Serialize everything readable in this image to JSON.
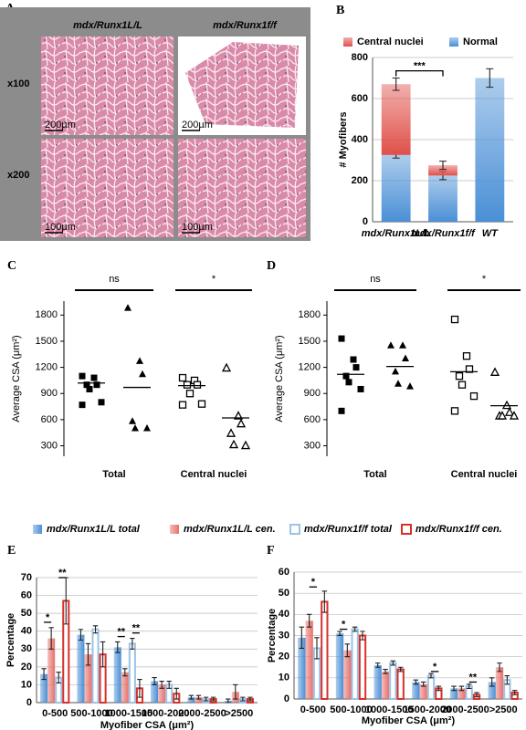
{
  "chart_data": [
    {
      "type": "image",
      "label": "A",
      "columns": [
        "mdx/Runx1L/L",
        "mdx/Runx1f/f"
      ],
      "rows": [
        "x100",
        "x200"
      ],
      "scale_bars": [
        "200µm",
        "200µm",
        "100µm",
        "100µm"
      ]
    },
    {
      "type": "bar",
      "stacked": true,
      "label": "B",
      "categories": [
        "mdx/Runx1L/L",
        "mdx/Runx1f/f",
        "WT"
      ],
      "ylabel": "# Myofibers",
      "ylim": [
        0,
        800
      ],
      "yticks": [
        0,
        200,
        400,
        600,
        800
      ],
      "grid": true,
      "series": [
        {
          "name": "Normal",
          "color": "#4a8fd6",
          "filled": true,
          "values": [
            325,
            225,
            700
          ],
          "errors": [
            15,
            20,
            45
          ]
        },
        {
          "name": "Central nuclei",
          "color": "#e0504a",
          "filled": true,
          "values": [
            345,
            50,
            null
          ],
          "errors": [
            30,
            20,
            null
          ]
        }
      ],
      "annotations": [
        "***"
      ]
    },
    {
      "type": "strip",
      "label": "C",
      "ylabel": "Average CSA (μm²)",
      "ylim": [
        180,
        1960
      ],
      "yticks": [
        300,
        600,
        900,
        1200,
        1500,
        1800
      ],
      "categories": [
        "Total",
        "Central nuclei"
      ],
      "filled": [
        true,
        false
      ],
      "series": [
        {
          "marker": "square",
          "values": [
            [
              1100,
              1080,
              1000,
              1000,
              950,
              800,
              770
            ],
            [
              1080,
              1050,
              1000,
              1000,
              900,
              780,
              770
            ]
          ],
          "means": [
            1020,
            990
          ]
        },
        {
          "marker": "triangle",
          "values": [
            [
              1880,
              1270,
              1120,
              580,
              500,
              500
            ],
            [
              1190,
              640,
              550,
              440,
              310,
              300
            ]
          ],
          "means": [
            970,
            620
          ]
        }
      ],
      "annotations": [
        "ns",
        "*"
      ]
    },
    {
      "type": "strip",
      "label": "D",
      "ylabel": "Average CSA (μm²)",
      "ylim": [
        180,
        1960
      ],
      "yticks": [
        300,
        600,
        900,
        1200,
        1500,
        1800
      ],
      "categories": [
        "Total",
        "Central nuclei"
      ],
      "filled": [
        true,
        false
      ],
      "series": [
        {
          "marker": "square",
          "values": [
            [
              1530,
              1290,
              1200,
              1100,
              1030,
              950,
              700
            ],
            [
              1750,
              1330,
              1180,
              1100,
              1000,
              870,
              700
            ]
          ],
          "means": [
            1120,
            1150
          ]
        },
        {
          "marker": "triangle",
          "values": [
            [
              1450,
              1450,
              1300,
              1150,
              1010,
              980
            ],
            [
              1140,
              760,
              680,
              640,
              640,
              640
            ]
          ],
          "means": [
            1210,
            760
          ]
        }
      ],
      "annotations": [
        "ns",
        "*"
      ]
    },
    {
      "type": "bar",
      "stacked": false,
      "label": "E",
      "categories": [
        "0-500",
        "500-1000",
        "1000-1500",
        "1500-2000",
        "2000-2500",
        ">2500"
      ],
      "xlabel": "Myofiber CSA (μm²)",
      "ylabel": "Percentage",
      "ylim": [
        0,
        70
      ],
      "yticks": [
        0,
        10,
        20,
        30,
        40,
        50,
        60,
        70
      ],
      "grid": true,
      "series": [
        {
          "name": "mdx/Runx1L/L total",
          "color": "#4a8fd6",
          "filled": true,
          "values": [
            16,
            38,
            31,
            12,
            3,
            1
          ],
          "errors": [
            3,
            3,
            3,
            2,
            1,
            1
          ]
        },
        {
          "name": "mdx/Runx1L/L cen.",
          "color": "#e8706a",
          "filled": true,
          "values": [
            36,
            27,
            17,
            10,
            3,
            6
          ],
          "errors": [
            6,
            6,
            2,
            2,
            1,
            4
          ]
        },
        {
          "name": "mdx/Runx1f/f total",
          "color": "#9cc3e6",
          "filled": false,
          "values": [
            14,
            41,
            33,
            10,
            2,
            2
          ],
          "errors": [
            3,
            2,
            3,
            2,
            1,
            1
          ]
        },
        {
          "name": "mdx/Runx1f/f cen.",
          "color": "#d9302a",
          "filled": false,
          "values": [
            57,
            27,
            8,
            5,
            2,
            2
          ],
          "errors": [
            13,
            7,
            5,
            3,
            1,
            1
          ]
        }
      ],
      "annotations": [
        "*",
        "**",
        "**",
        "**"
      ]
    },
    {
      "type": "bar",
      "stacked": false,
      "label": "F",
      "categories": [
        "0-500",
        "500-1000",
        "1000-1500",
        "1500-2000",
        "2000-2500",
        ">2500"
      ],
      "xlabel": "Myofiber CSA (μm²)",
      "ylabel": "Percentage",
      "ylim": [
        0,
        60
      ],
      "yticks": [
        0,
        10,
        20,
        30,
        40,
        50,
        60
      ],
      "grid": true,
      "series": [
        {
          "color": "#4a8fd6",
          "filled": true,
          "values": [
            29,
            31,
            16,
            8,
            5,
            8
          ],
          "errors": [
            5,
            1,
            1,
            1,
            1,
            2
          ]
        },
        {
          "color": "#e8706a",
          "filled": true,
          "values": [
            37,
            23,
            13,
            7,
            5,
            15
          ],
          "errors": [
            3,
            3,
            1,
            1,
            1,
            2
          ]
        },
        {
          "color": "#9cc3e6",
          "filled": false,
          "values": [
            24,
            33,
            17,
            11,
            6,
            9
          ],
          "errors": [
            5,
            1,
            1,
            1,
            1,
            2
          ]
        },
        {
          "color": "#d9302a",
          "filled": false,
          "values": [
            46,
            30,
            14,
            5,
            2,
            3
          ],
          "errors": [
            5,
            2,
            1,
            1,
            1,
            1
          ]
        }
      ],
      "annotations": [
        "*",
        "*",
        "*",
        "**"
      ]
    }
  ]
}
